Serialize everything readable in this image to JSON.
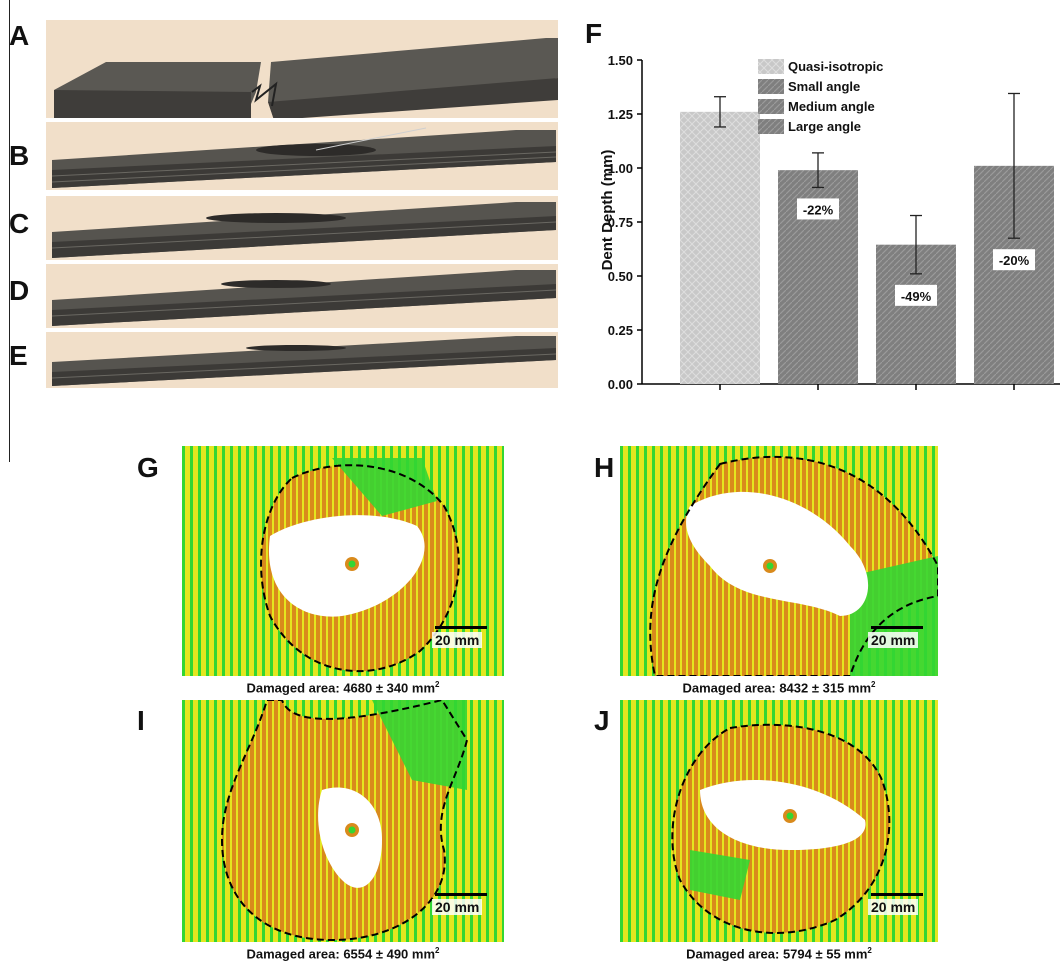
{
  "panels": {
    "A": "A",
    "B": "B",
    "C": "C",
    "D": "D",
    "E": "E",
    "F": "F",
    "G": "G",
    "H": "H",
    "I": "I",
    "J": "J"
  },
  "colors": {
    "photo_bg": "#f1dfc9",
    "laminate": "#4d4b47",
    "map_green": "#33d633",
    "map_yellow": "#e4e61f",
    "map_orange": "#d98a1c",
    "bar_light": "#c8c8c8",
    "bar_dark": "#7f7f7f"
  },
  "chart_data": {
    "type": "bar",
    "ylabel": "Dent Depth (mm)",
    "ylim": [
      0,
      1.5
    ],
    "yticks": [
      "0.00",
      "0.25",
      "0.50",
      "0.75",
      "1.00",
      "1.25",
      "1.50"
    ],
    "legend_position": "top",
    "series": [
      {
        "name": "Quasi-isotropic",
        "value": 1.26,
        "error": 0.07,
        "label": "",
        "color": "#c8c8c8"
      },
      {
        "name": "Small angle",
        "value": 0.99,
        "error": 0.08,
        "label": "-22%",
        "color": "#7f7f7f"
      },
      {
        "name": "Medium angle",
        "value": 0.645,
        "error": 0.135,
        "label": "-49%",
        "color": "#7f7f7f"
      },
      {
        "name": "Large angle",
        "value": 1.01,
        "error": 0.335,
        "label": "-20%",
        "color": "#7f7f7f"
      }
    ]
  },
  "maps": [
    {
      "letter": "G",
      "area_text": "Damaged area: 4680 ± 340 mm",
      "sup": "2",
      "scale": "20 mm"
    },
    {
      "letter": "H",
      "area_text": "Damaged area: 8432 ± 315 mm",
      "sup": "2",
      "scale": "20 mm"
    },
    {
      "letter": "I",
      "area_text": "Damaged area: 6554 ± 490 mm",
      "sup": "2",
      "scale": "20 mm"
    },
    {
      "letter": "J",
      "area_text": "Damaged area: 5794 ± 55 mm",
      "sup": "2",
      "scale": "20 mm"
    }
  ]
}
